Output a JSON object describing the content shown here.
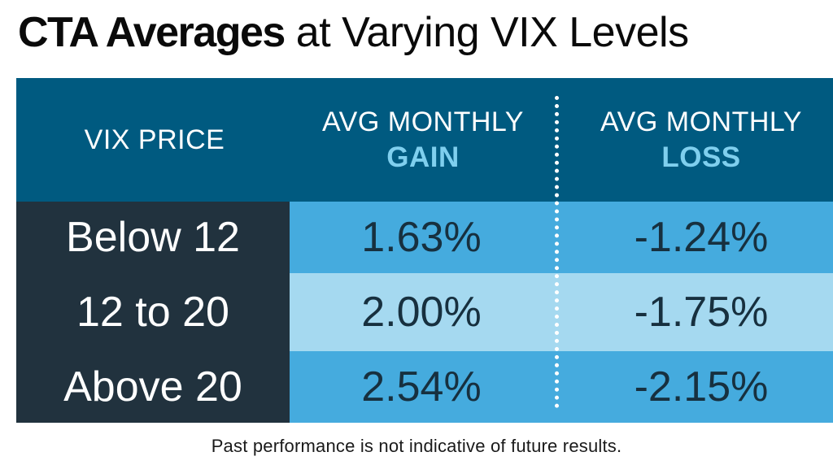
{
  "title": {
    "bold": "CTA Averages",
    "light": "at Varying VIX Levels"
  },
  "chart_data": {
    "type": "table",
    "columns": [
      {
        "line1": "VIX PRICE",
        "line2": ""
      },
      {
        "line1": "AVG MONTHLY",
        "line2": "GAIN"
      },
      {
        "line1": "AVG MONTHLY",
        "line2": "LOSS"
      }
    ],
    "rows": [
      {
        "label": "Below 12",
        "gain": "1.63%",
        "loss": "-1.24%"
      },
      {
        "label": "12 to 20",
        "gain": "2.00%",
        "loss": "-1.75%"
      },
      {
        "label": "Above 20",
        "gain": "2.54%",
        "loss": "-2.15%"
      }
    ]
  },
  "colors": {
    "header_bg": "#005a80",
    "header_accent": "#7fcfee",
    "label_bg": "#21323e",
    "row_dark": "#45abde",
    "row_light": "#a5d9f0"
  },
  "footnote": "Past performance is not indicative of future results."
}
